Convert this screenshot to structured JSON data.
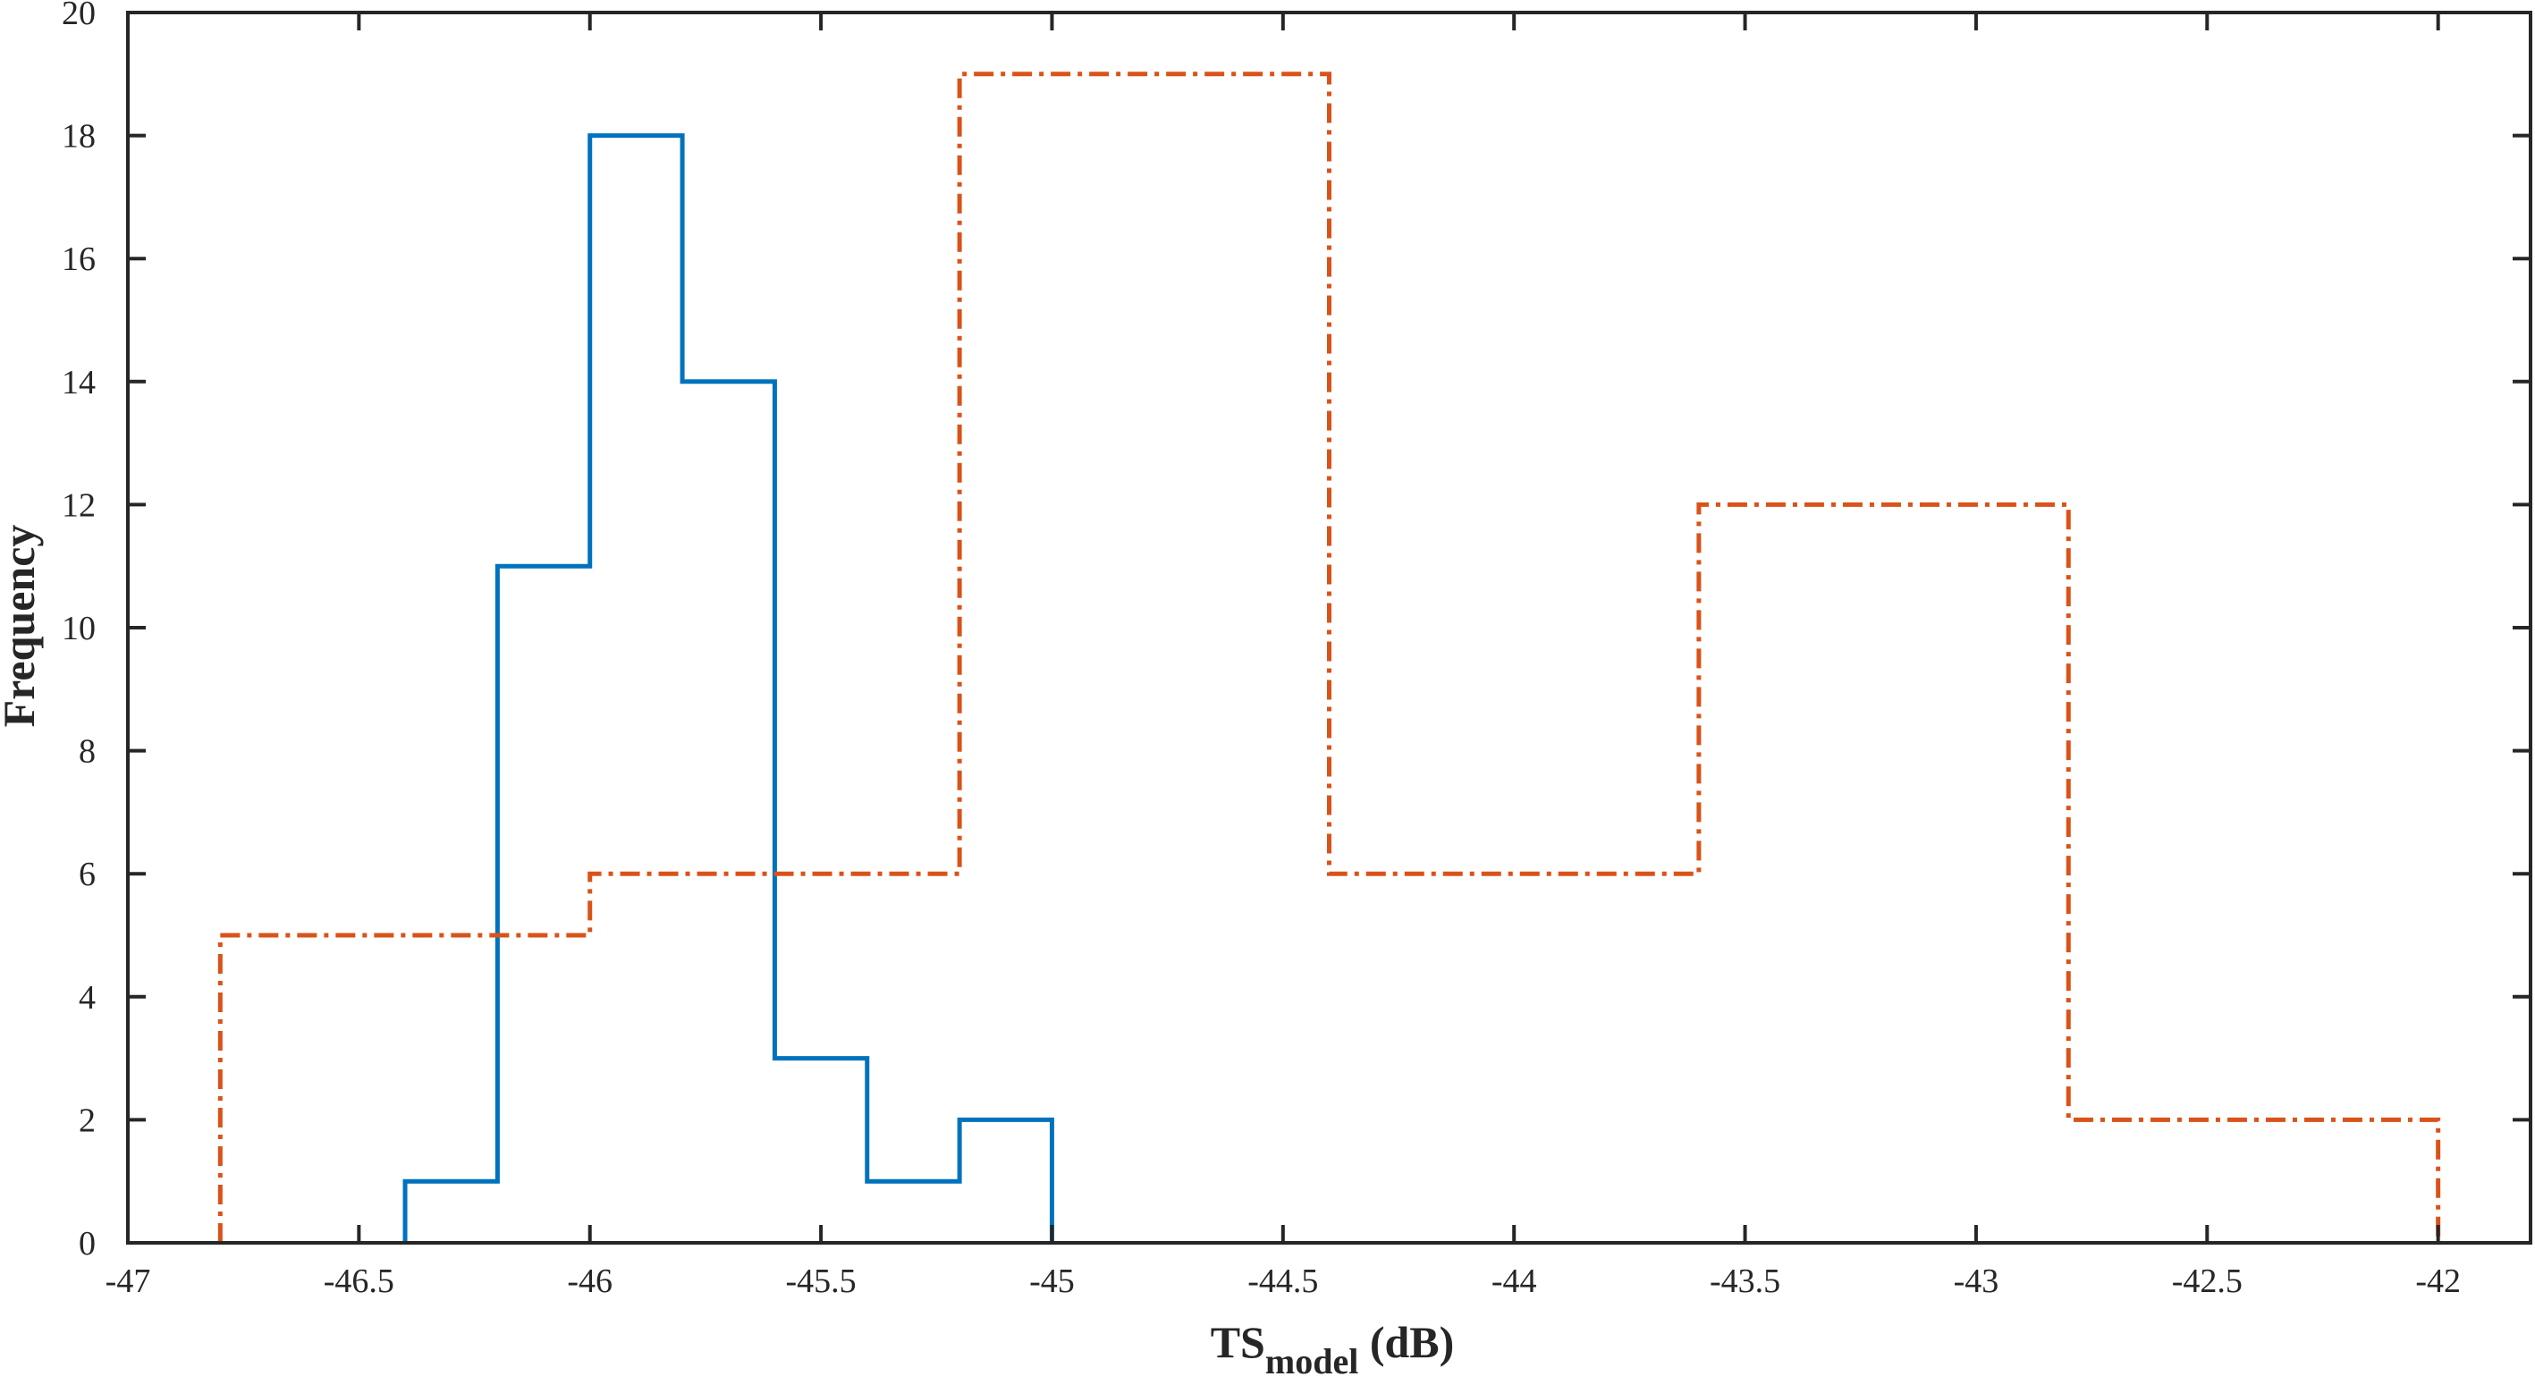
{
  "chart_data": {
    "type": "histogram",
    "xlabel_main": "TS",
    "xlabel_sub": "model",
    "xlabel_unit": "(dB)",
    "ylabel": "Frequency",
    "xlim": [
      -47,
      -41.8
    ],
    "ylim": [
      0,
      20
    ],
    "xticks": [
      -47,
      -46.5,
      -46,
      -45.5,
      -45,
      -44.5,
      -44,
      -43.5,
      -43,
      -42.5,
      -42
    ],
    "xtick_labels": [
      "-47",
      "-46.5",
      "-46",
      "-45.5",
      "-45",
      "-44.5",
      "-44",
      "-43.5",
      "-43",
      "-42.5",
      "-42"
    ],
    "yticks": [
      0,
      2,
      4,
      6,
      8,
      10,
      12,
      14,
      16,
      18,
      20
    ],
    "ytick_labels": [
      "0",
      "2",
      "4",
      "6",
      "8",
      "10",
      "12",
      "14",
      "16",
      "18",
      "20"
    ],
    "grid": false,
    "series": [
      {
        "style": "solid",
        "color": "#0072BD",
        "bin_edges": [
          -46.4,
          -46.2,
          -46.0,
          -45.8,
          -45.6,
          -45.4,
          -45.2,
          -45.0
        ],
        "counts": [
          1,
          11,
          18,
          14,
          3,
          1,
          2
        ]
      },
      {
        "style": "dash-dot",
        "color": "#D95319",
        "bin_edges": [
          -46.8,
          -46.0,
          -45.2,
          -44.4,
          -43.6,
          -42.8,
          -42.0
        ],
        "counts": [
          5,
          6,
          19,
          6,
          12,
          2
        ]
      }
    ]
  }
}
